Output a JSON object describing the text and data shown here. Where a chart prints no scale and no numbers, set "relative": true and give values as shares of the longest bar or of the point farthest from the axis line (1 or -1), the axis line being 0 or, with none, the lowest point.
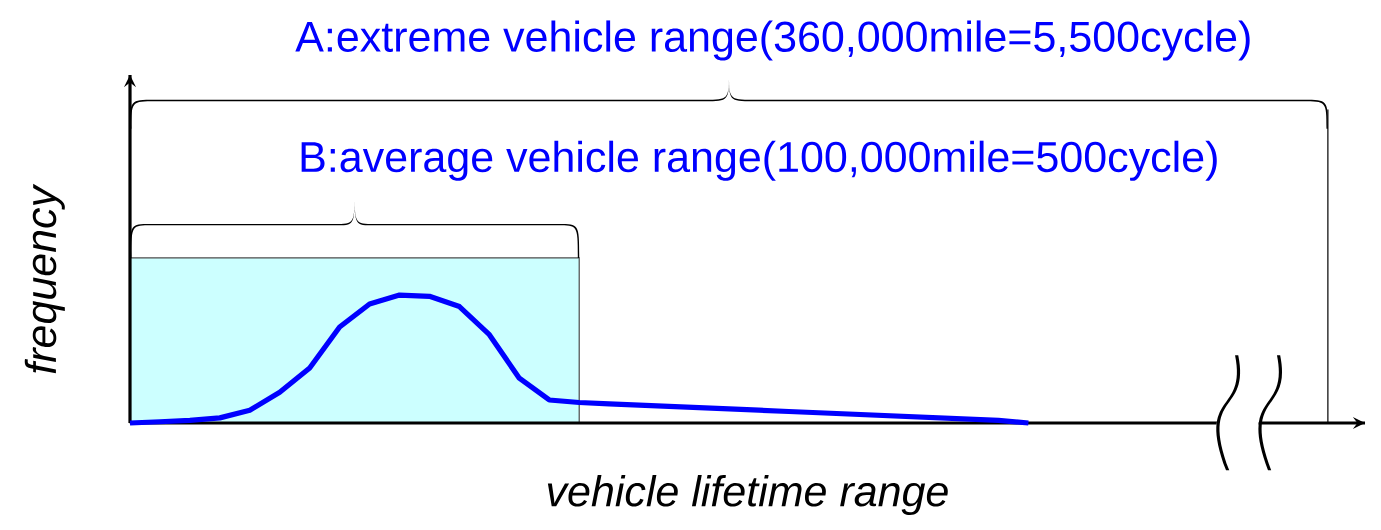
{
  "chart_data": {
    "type": "line",
    "relative": true,
    "xlabel": "vehicle lifetime range",
    "ylabel": "frequency",
    "color": "#0000ff",
    "categories": [
      null,
      null,
      null,
      null,
      null,
      null,
      null,
      null,
      null,
      null,
      null,
      null,
      null,
      null,
      null,
      null,
      null,
      null,
      null,
      null,
      null,
      null,
      null,
      null,
      null,
      null,
      null,
      null,
      null,
      null,
      null,
      null,
      null,
      null,
      null,
      null,
      null,
      null,
      null,
      null,
      null
    ],
    "values": [
      0.0,
      0.01,
      0.02,
      0.04,
      0.1,
      0.24,
      0.43,
      0.75,
      0.93,
      1.0,
      0.99,
      0.91,
      0.69,
      0.35,
      0.18,
      0.16,
      0.15,
      0.14,
      0.13,
      0.12,
      0.11,
      0.1,
      0.09,
      0.08,
      0.07,
      0.06,
      0.05,
      0.04,
      0.03,
      0.02,
      0.0,
      null,
      null,
      null,
      null,
      null,
      null,
      null,
      null,
      null,
      null
    ],
    "annotations": [
      "A:extreme vehicle range(360,000mile=5,500cycle)",
      "B:average vehicle range(100,000mile=500cycle)"
    ]
  }
}
